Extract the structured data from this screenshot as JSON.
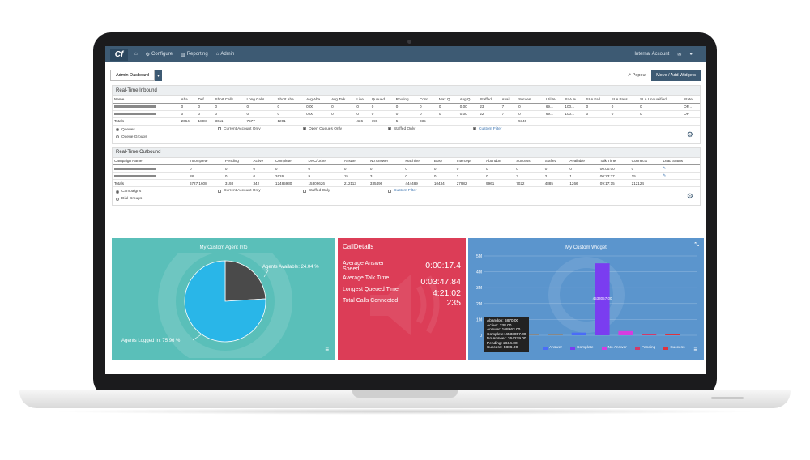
{
  "nav": {
    "logo": "Cf",
    "items": [
      "Configure",
      "Reporting",
      "Admin"
    ],
    "account": "Internal Account"
  },
  "toolbar": {
    "dashboard": "Admin Dasboard",
    "popout": "Popout",
    "move_label": "Move / Add Widgets"
  },
  "inbound": {
    "title": "Real-Time Inbound",
    "columns": [
      "Name",
      "Aba",
      "Def",
      "Short Calls",
      "Long Calls",
      "Short Aba",
      "Avg Aba",
      "Avg Talk",
      "Live",
      "Queued",
      "Routing",
      "Conn.",
      "Max Q",
      "Avg Q",
      "Staffed",
      "Avail",
      "Succes...",
      "Util %",
      "SLA %",
      "SLA Fail",
      "SLA Pass",
      "SLA Unqualified",
      "State"
    ],
    "rows": [
      [
        "",
        "0",
        "0",
        "0",
        "0",
        "0",
        "0.00",
        "0",
        "0",
        "0",
        "0",
        "0",
        "0",
        "0.00",
        "23",
        "7",
        "0",
        "69...",
        "100...",
        "0",
        "0",
        "0",
        "OP..."
      ],
      [
        "",
        "0",
        "0",
        "0",
        "0",
        "0",
        "0.00",
        "0",
        "0",
        "0",
        "0",
        "0",
        "0",
        "0.00",
        "22",
        "7",
        "0",
        "69...",
        "100...",
        "0",
        "0",
        "0",
        "OP"
      ]
    ],
    "totals": [
      "Totals",
      "2664",
      "1898",
      "3611",
      "7577",
      "1201",
      "",
      "",
      "436",
      "196",
      "5",
      "235",
      "",
      "",
      "",
      "",
      "5749",
      "",
      "",
      "",
      "",
      "",
      ""
    ],
    "options": {
      "queues": "Queues",
      "queue_groups": "Queue Groups",
      "current_account": "Current Account Only",
      "open_queues": "Open Queues Only",
      "staffed": "Staffed Only",
      "custom_filter": "Custom Filter"
    }
  },
  "outbound": {
    "title": "Real-Time Outbound",
    "columns": [
      "Campaign Name",
      "Incomplete",
      "Pending",
      "Active",
      "Complete",
      "DNC/Other",
      "Answer",
      "No Answer",
      "Machine",
      "Busy",
      "Intercept",
      "Abandon",
      "Success",
      "Staffed",
      "Available",
      "Talk Time",
      "Connects",
      "Lead Status"
    ],
    "rows": [
      [
        "",
        "0",
        "0",
        "0",
        "0",
        "0",
        "0",
        "0",
        "0",
        "0",
        "0",
        "0",
        "0",
        "0",
        "0",
        "00:00:00",
        "0",
        ""
      ],
      [
        "",
        "88",
        "0",
        "0",
        "2626",
        "9",
        "15",
        "3",
        "0",
        "0",
        "2",
        "0",
        "3",
        "2",
        "1",
        "00:23:37",
        "15",
        ""
      ]
    ],
    "totals": [
      "Totals",
      "6727 1608",
      "3193",
      "342",
      "12485930",
      "15309626",
      "212113",
      "335496",
      "444489",
      "10434",
      "27982",
      "9961",
      "7022",
      "4885",
      "1266",
      "09:17:15",
      "212124",
      ""
    ],
    "options": {
      "campaigns": "Campaigns",
      "dial_groups": "Dial Groups",
      "current_account": "Current Account Only",
      "staffed": "Staffed Only",
      "custom_filter": "Custom Filter"
    }
  },
  "agent_widget": {
    "title": "My Custom Agent Info",
    "available_label": "Agents Available: 24.04 %",
    "logged_label": "Agents Logged In: 75.96 %"
  },
  "call_details": {
    "title": "CallDetails",
    "rows": [
      {
        "label": "Average Answer Speed",
        "value": "0:00:17.4"
      },
      {
        "label": "Average Talk Time",
        "value": "0:03:47.84"
      },
      {
        "label": "Longest Queued Time",
        "value": "4:21:02"
      },
      {
        "label": "Total Calls Connected",
        "value": "235"
      }
    ]
  },
  "custom_widget": {
    "title": "My Custom Widget",
    "tooltip": [
      "Abandon: 6870.00",
      "Active: 338.00",
      "Answer: 168963.00",
      "Complete: 4533057.00",
      "No Answer: 264279.00",
      "Pending: 2684.00",
      "Success: 5806.00"
    ],
    "bar_label": "4533057.00",
    "legend": [
      "Answer",
      "Complete",
      "No Answer",
      "Pending",
      "Success"
    ]
  },
  "chart_data": [
    {
      "type": "pie",
      "title": "My Custom Agent Info",
      "categories": [
        "Agents Available",
        "Agents Logged In"
      ],
      "values": [
        24.04,
        75.96
      ],
      "colors": [
        "#4a4a4a",
        "#29b6e8"
      ]
    },
    {
      "type": "bar",
      "title": "My Custom Widget",
      "categories": [
        "Abandon",
        "Active",
        "Answer",
        "Complete",
        "No Answer",
        "Pending",
        "Success"
      ],
      "values": [
        6870,
        338,
        168963,
        4533057,
        264279,
        2684,
        5806
      ],
      "ylim": [
        0,
        5000000
      ],
      "yticks": [
        "5M",
        "4M",
        "3M",
        "2M",
        "1M",
        "0"
      ]
    }
  ]
}
